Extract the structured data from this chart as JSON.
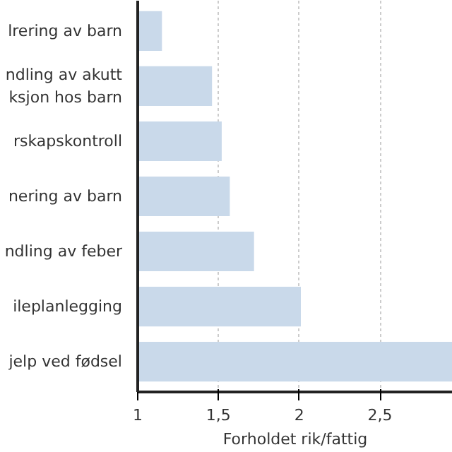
{
  "chart_data": {
    "type": "bar",
    "orientation": "horizontal",
    "xlabel": "Forholdet rik/fattig",
    "categories": [
      "lrering av barn",
      "ndling av akutt\nksjon hos barn",
      "rskapskontroll",
      "nering av barn",
      "ndling av feber",
      "ileplanlegging",
      "jelp ved fødsel"
    ],
    "values": [
      1.15,
      1.46,
      1.52,
      1.57,
      1.72,
      2.01,
      2.95
    ],
    "color": "#c9d9ea",
    "xlim": [
      1,
      2.95
    ],
    "xticks": [
      1,
      {
        "value": 1.5,
        "label": "1,5"
      },
      2,
      {
        "value": 2.5,
        "label": "2,5"
      }
    ],
    "grid": "x"
  }
}
